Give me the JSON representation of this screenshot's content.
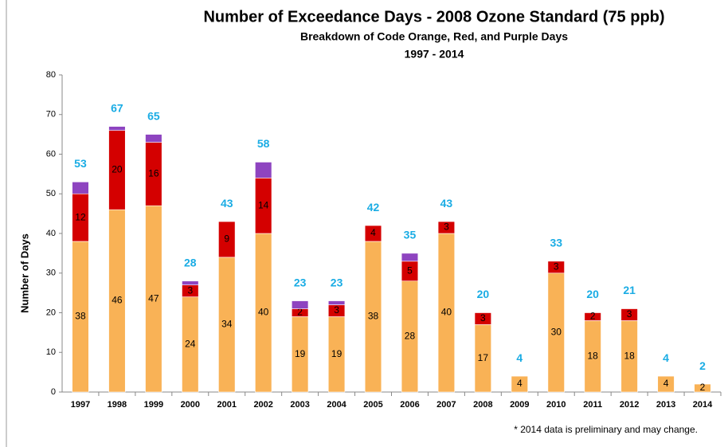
{
  "chart_data": {
    "type": "stacked_bar",
    "title": "Number of Exceedance Days - 2008 Ozone Standard (75 ppb)",
    "subtitle": "Breakdown of Code Orange, Red, and Purple Days",
    "subtitle2": "1997 - 2014",
    "y_label": "Number of Days",
    "footnote": "*  2014 data is preliminary and may change.",
    "categories": [
      "1997",
      "1998",
      "1999",
      "2000",
      "2001",
      "2002",
      "2003",
      "2004",
      "2005",
      "2006",
      "2007",
      "2008",
      "2009",
      "2010",
      "2011",
      "2012",
      "2013",
      "2014"
    ],
    "series": [
      {
        "name": "Orange",
        "color": "#f9b256",
        "values": [
          38,
          46,
          47,
          24,
          34,
          40,
          19,
          19,
          38,
          28,
          40,
          17,
          4,
          30,
          18,
          18,
          4,
          2
        ]
      },
      {
        "name": "Red",
        "color": "#d40000",
        "values": [
          12,
          20,
          16,
          3,
          9,
          14,
          2,
          3,
          4,
          5,
          3,
          3,
          0,
          3,
          2,
          3,
          0,
          0
        ]
      },
      {
        "name": "Purple",
        "color": "#8e44c0",
        "values": [
          3,
          1,
          2,
          1,
          0,
          4,
          2,
          1,
          0,
          2,
          0,
          0,
          0,
          0,
          0,
          0,
          0,
          0
        ]
      }
    ],
    "totals": [
      53,
      67,
      65,
      28,
      43,
      58,
      23,
      23,
      42,
      35,
      43,
      20,
      4,
      33,
      20,
      21,
      4,
      2
    ],
    "ylim": [
      0,
      80
    ],
    "yticks": [
      0,
      10,
      20,
      30,
      40,
      50,
      60,
      70,
      80
    ]
  }
}
